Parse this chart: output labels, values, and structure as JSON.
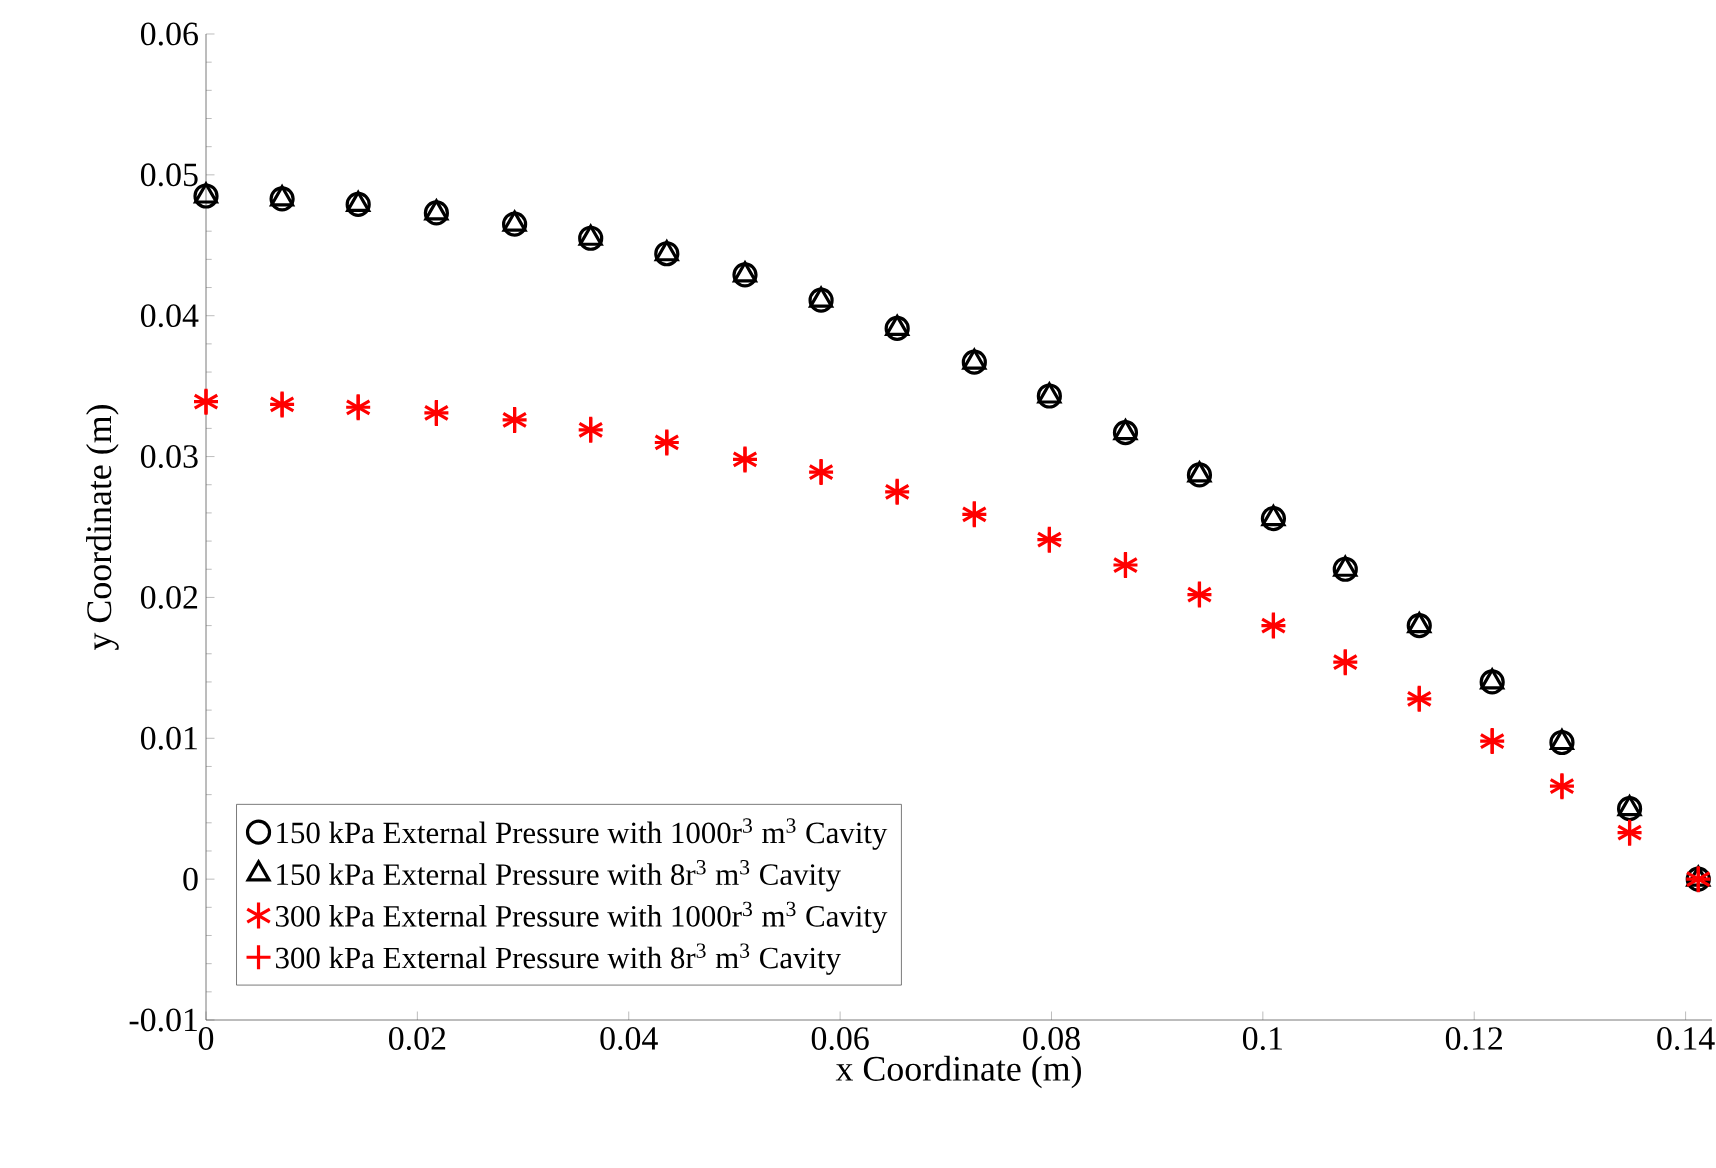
{
  "chart_data": {
    "type": "scatter",
    "xlabel": "x Coordinate (m)",
    "ylabel": "y Coordinate (m)",
    "x": [
      0,
      0.0072,
      0.0144,
      0.0218,
      0.0292,
      0.0364,
      0.0436,
      0.051,
      0.0582,
      0.0654,
      0.0727,
      0.0798,
      0.087,
      0.094,
      0.101,
      0.1078,
      0.1148,
      0.1217,
      0.1283,
      0.1347,
      0.1412
    ],
    "xlim": [
      0,
      0.1425
    ],
    "xticks": [
      0,
      0.02,
      0.04,
      0.06,
      0.08,
      0.1,
      0.12,
      0.14
    ],
    "ylim": [
      -0.01,
      0.06
    ],
    "yticks": [
      -0.01,
      0,
      0.01,
      0.02,
      0.03,
      0.04,
      0.05,
      0.06
    ],
    "grid": false,
    "legend": "bottom left",
    "series": [
      {
        "name": "150 kPa External Pressure with 1000r$^{3}$ m$^{3}$ Cavity",
        "color": "#000000",
        "marker": "circle",
        "values": [
          0.0485,
          0.0483,
          0.0479,
          0.0473,
          0.0465,
          0.0455,
          0.0444,
          0.0429,
          0.0411,
          0.0391,
          0.0367,
          0.0343,
          0.0317,
          0.0287,
          0.0256,
          0.022,
          0.018,
          0.014,
          0.0097,
          0.005,
          0
        ]
      },
      {
        "name": "150 kPa External Pressure with 8r$^{3}$ m$^{3}$ Cavity",
        "color": "#000000",
        "marker": "triangle",
        "values": [
          0.0485,
          0.0483,
          0.0479,
          0.0473,
          0.0465,
          0.0455,
          0.0444,
          0.0429,
          0.0411,
          0.0391,
          0.0367,
          0.0343,
          0.0317,
          0.0287,
          0.0256,
          0.022,
          0.018,
          0.014,
          0.0097,
          0.005,
          0
        ]
      },
      {
        "name": "300 kPa External Pressure with 1000r$^{3}$ m$^{3}$ Cavity",
        "color": "#ff0000",
        "marker": "cross",
        "values": [
          0.0339,
          0.0337,
          0.0335,
          0.0331,
          0.0326,
          0.0319,
          0.031,
          0.0298,
          0.0289,
          0.0275,
          0.0259,
          0.0241,
          0.0223,
          0.0202,
          0.018,
          0.0154,
          0.0128,
          0.0098,
          0.0066,
          0.0033,
          0
        ]
      },
      {
        "name": "300 kPa External Pressure with 8r$^{3}$ m$^{3}$ Cavity",
        "color": "#ff0000",
        "values": [
          0.0339,
          0.0337,
          0.0335,
          0.0331,
          0.0326,
          0.0319,
          0.031,
          0.0298,
          0.0289,
          0.0275,
          0.0259,
          0.0241,
          0.0223,
          0.0202,
          0.018,
          0.0154,
          0.0128,
          0.0098,
          0.0066,
          0.0033,
          0
        ]
      }
    ]
  }
}
